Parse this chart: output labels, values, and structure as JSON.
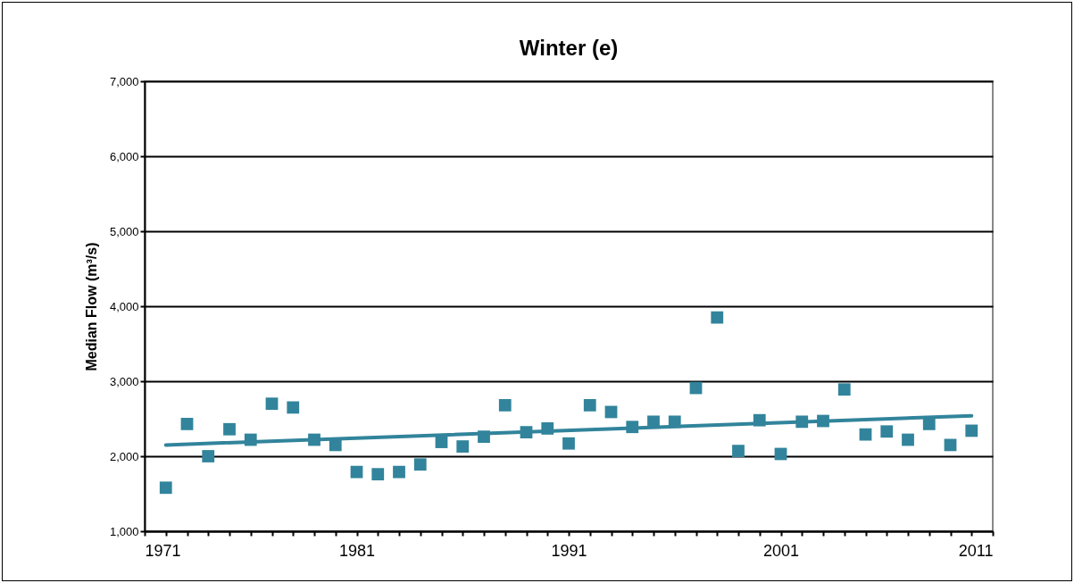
{
  "chart_data": {
    "type": "scatter",
    "title": "Winter (e)",
    "ylabel": "Median Flow (m³/s)",
    "x": [
      1972,
      1973,
      1974,
      1975,
      1976,
      1977,
      1978,
      1979,
      1980,
      1981,
      1982,
      1983,
      1984,
      1985,
      1986,
      1987,
      1988,
      1989,
      1990,
      1991,
      1992,
      1993,
      1994,
      1995,
      1996,
      1997,
      1998,
      1999,
      2000,
      2001,
      2002,
      2003,
      2004,
      2005,
      2006,
      2007,
      2008,
      2009,
      2010
    ],
    "series": [
      {
        "color": "#31849b",
        "marker": "square",
        "values": [
          1580,
          2430,
          2000,
          2360,
          2220,
          2700,
          2650,
          2220,
          2150,
          1790,
          1760,
          1790,
          1890,
          2190,
          2130,
          2260,
          2680,
          2320,
          2370,
          2170,
          2680,
          2590,
          2390,
          2460,
          2460,
          2910,
          3850,
          2070,
          2480,
          2030,
          2460,
          2470,
          2890,
          2290,
          2330,
          2220,
          2430,
          2150,
          2340
        ]
      },
      {
        "type": "line",
        "color": "#31849b",
        "x": [
          1972,
          2010
        ],
        "values": [
          2150,
          2540
        ]
      }
    ],
    "grid": "y",
    "xlim": [
      1971,
      2011
    ],
    "xticks": [
      1971,
      {
        "value": 1972,
        "label": null
      },
      {
        "value": 1973,
        "label": null
      },
      {
        "value": 1974,
        "label": null
      },
      {
        "value": 1975,
        "label": null
      },
      {
        "value": 1976,
        "label": null
      },
      {
        "value": 1977,
        "label": null
      },
      {
        "value": 1978,
        "label": null
      },
      {
        "value": 1979,
        "label": null
      },
      {
        "value": 1980,
        "label": null
      },
      1981,
      {
        "value": 1982,
        "label": null
      },
      {
        "value": 1983,
        "label": null
      },
      {
        "value": 1984,
        "label": null
      },
      {
        "value": 1985,
        "label": null
      },
      {
        "value": 1986,
        "label": null
      },
      {
        "value": 1987,
        "label": null
      },
      {
        "value": 1988,
        "label": null
      },
      {
        "value": 1989,
        "label": null
      },
      {
        "value": 1990,
        "label": null
      },
      1991,
      {
        "value": 1992,
        "label": null
      },
      {
        "value": 1993,
        "label": null
      },
      {
        "value": 1994,
        "label": null
      },
      {
        "value": 1995,
        "label": null
      },
      {
        "value": 1996,
        "label": null
      },
      {
        "value": 1997,
        "label": null
      },
      {
        "value": 1998,
        "label": null
      },
      {
        "value": 1999,
        "label": null
      },
      {
        "value": 2000,
        "label": null
      },
      2001,
      {
        "value": 2002,
        "label": null
      },
      {
        "value": 2003,
        "label": null
      },
      {
        "value": 2004,
        "label": null
      },
      {
        "value": 2005,
        "label": null
      },
      {
        "value": 2006,
        "label": null
      },
      {
        "value": 2007,
        "label": null
      },
      {
        "value": 2008,
        "label": null
      },
      {
        "value": 2009,
        "label": null
      },
      {
        "value": 2010,
        "label": null
      },
      2011
    ],
    "ylim": [
      1000,
      7000
    ],
    "yticks": [
      {
        "value": 1000,
        "label": "1,000"
      },
      {
        "value": 2000,
        "label": "2,000"
      },
      {
        "value": 3000,
        "label": "3,000"
      },
      {
        "value": 4000,
        "label": "4,000"
      },
      {
        "value": 5000,
        "label": "5,000"
      },
      {
        "value": 6000,
        "label": "6,000"
      },
      {
        "value": 7000,
        "label": "7,000"
      }
    ]
  }
}
